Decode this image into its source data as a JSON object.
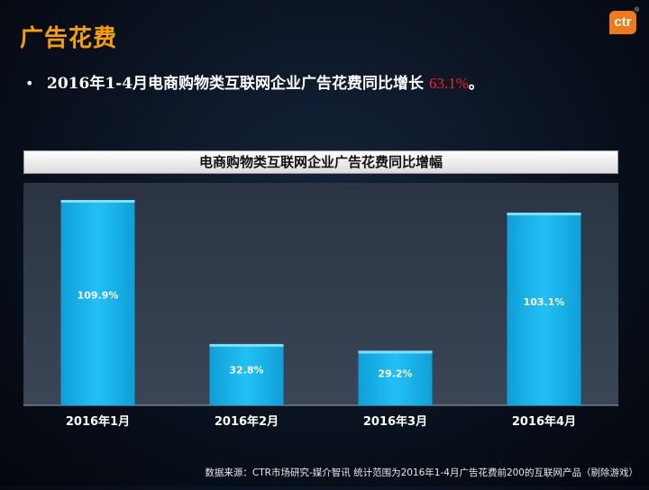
{
  "slide": {
    "title": "广告花费",
    "logo_text": "ctr",
    "logo_mark": "®",
    "bullet_symbol": "•",
    "bullet_text": "2016年1-4月电商购物类互联网企业广告花费同比增长 ",
    "bullet_highlight": "63.1%",
    "bullet_end": "。",
    "source": "数据来源：CTR市场研究-媒介智讯 统计范围为2016年1-4月广告花费前200的互联网产品（剔除游戏）"
  },
  "colors": {
    "title": "#f5a000",
    "bar": "#15b4f0",
    "highlight": "#ff2020",
    "plot_bg": "#2e3a48"
  },
  "chart_data": {
    "type": "bar",
    "title": "电商购物类互联网企业广告花费同比增幅",
    "categories": [
      "2016年1月",
      "2016年2月",
      "2016年3月",
      "2016年4月"
    ],
    "values": [
      109.9,
      32.8,
      29.2,
      103.1
    ],
    "data_labels": [
      "109.9%",
      "32.8%",
      "29.2%",
      "103.1%"
    ],
    "ylim": [
      0,
      120
    ],
    "grid": false,
    "legend": "none"
  }
}
